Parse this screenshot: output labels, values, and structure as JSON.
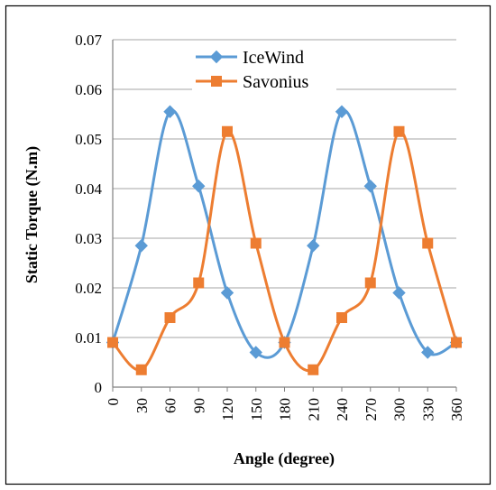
{
  "chart_data": {
    "type": "line",
    "xlabel": "Angle (degree)",
    "ylabel": "Static Torque (N.m)",
    "x": [
      0,
      30,
      60,
      90,
      120,
      150,
      180,
      210,
      240,
      270,
      300,
      330,
      360
    ],
    "xlim": [
      0,
      360
    ],
    "ylim": [
      0,
      0.07
    ],
    "x_ticks": [
      "0",
      "30",
      "60",
      "90",
      "120",
      "150",
      "180",
      "210",
      "240",
      "270",
      "300",
      "330",
      "360"
    ],
    "y_ticks": [
      "0",
      "0.01",
      "0.02",
      "0.03",
      "0.04",
      "0.05",
      "0.06",
      "0.07"
    ],
    "grid": "horizontal",
    "legend_position": "top-center",
    "series": [
      {
        "name": "IceWind",
        "color": "#5B9BD5",
        "marker": "diamond",
        "values": [
          0.009,
          0.0285,
          0.0555,
          0.0405,
          0.019,
          0.007,
          0.009,
          0.0285,
          0.0555,
          0.0405,
          0.019,
          0.007,
          0.009
        ]
      },
      {
        "name": "Savonius",
        "color": "#ED7D31",
        "marker": "square",
        "values": [
          0.009,
          0.0035,
          0.014,
          0.021,
          0.0515,
          0.029,
          0.009,
          0.0035,
          0.014,
          0.021,
          0.0515,
          0.029,
          0.009
        ]
      }
    ]
  }
}
